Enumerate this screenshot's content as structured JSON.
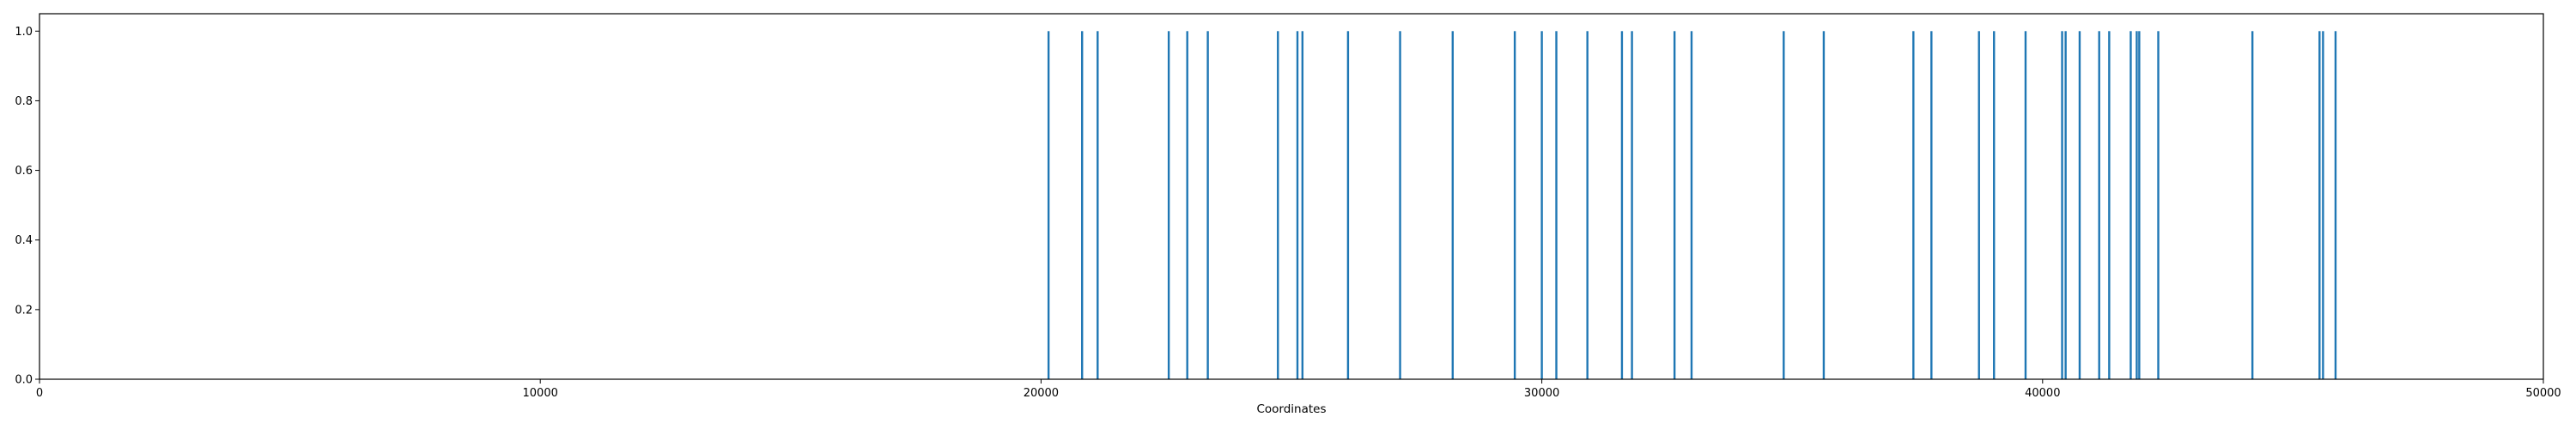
{
  "chart_data": {
    "type": "bar",
    "title": "",
    "xlabel": "Coordinates",
    "ylabel": "",
    "xlim": [
      0,
      50000
    ],
    "ylim": [
      0,
      1.05
    ],
    "grid": false,
    "legend": false,
    "bar_color": "#1f77b4",
    "x_ticks": [
      0,
      10000,
      20000,
      30000,
      40000,
      50000
    ],
    "x_tick_labels": [
      "0",
      "10000",
      "20000",
      "30000",
      "40000",
      "50000"
    ],
    "y_ticks": [
      0.0,
      0.2,
      0.4,
      0.6,
      0.8,
      1.0
    ],
    "y_tick_labels": [
      "0.0",
      "0.2",
      "0.4",
      "0.6",
      "0.8",
      "1.0"
    ],
    "series": [
      {
        "x": [
          20150,
          20820,
          21130,
          22550,
          22920,
          23330,
          24730,
          25120,
          25220,
          26130,
          27170,
          28220,
          29460,
          30000,
          30290,
          30910,
          31600,
          31800,
          32650,
          32990,
          34830,
          35630,
          37420,
          37780,
          38730,
          39030,
          39660,
          40390,
          40460,
          40740,
          41130,
          41330,
          41760,
          41880,
          41930,
          42310,
          44190,
          45530,
          45600,
          45850
        ],
        "values": [
          1,
          1,
          1,
          1,
          1,
          1,
          1,
          1,
          1,
          1,
          1,
          1,
          1,
          1,
          1,
          1,
          1,
          1,
          1,
          1,
          1,
          1,
          1,
          1,
          1,
          1,
          1,
          1,
          1,
          1,
          1,
          1,
          1,
          1,
          1,
          1,
          1,
          1,
          1,
          1
        ]
      }
    ]
  }
}
